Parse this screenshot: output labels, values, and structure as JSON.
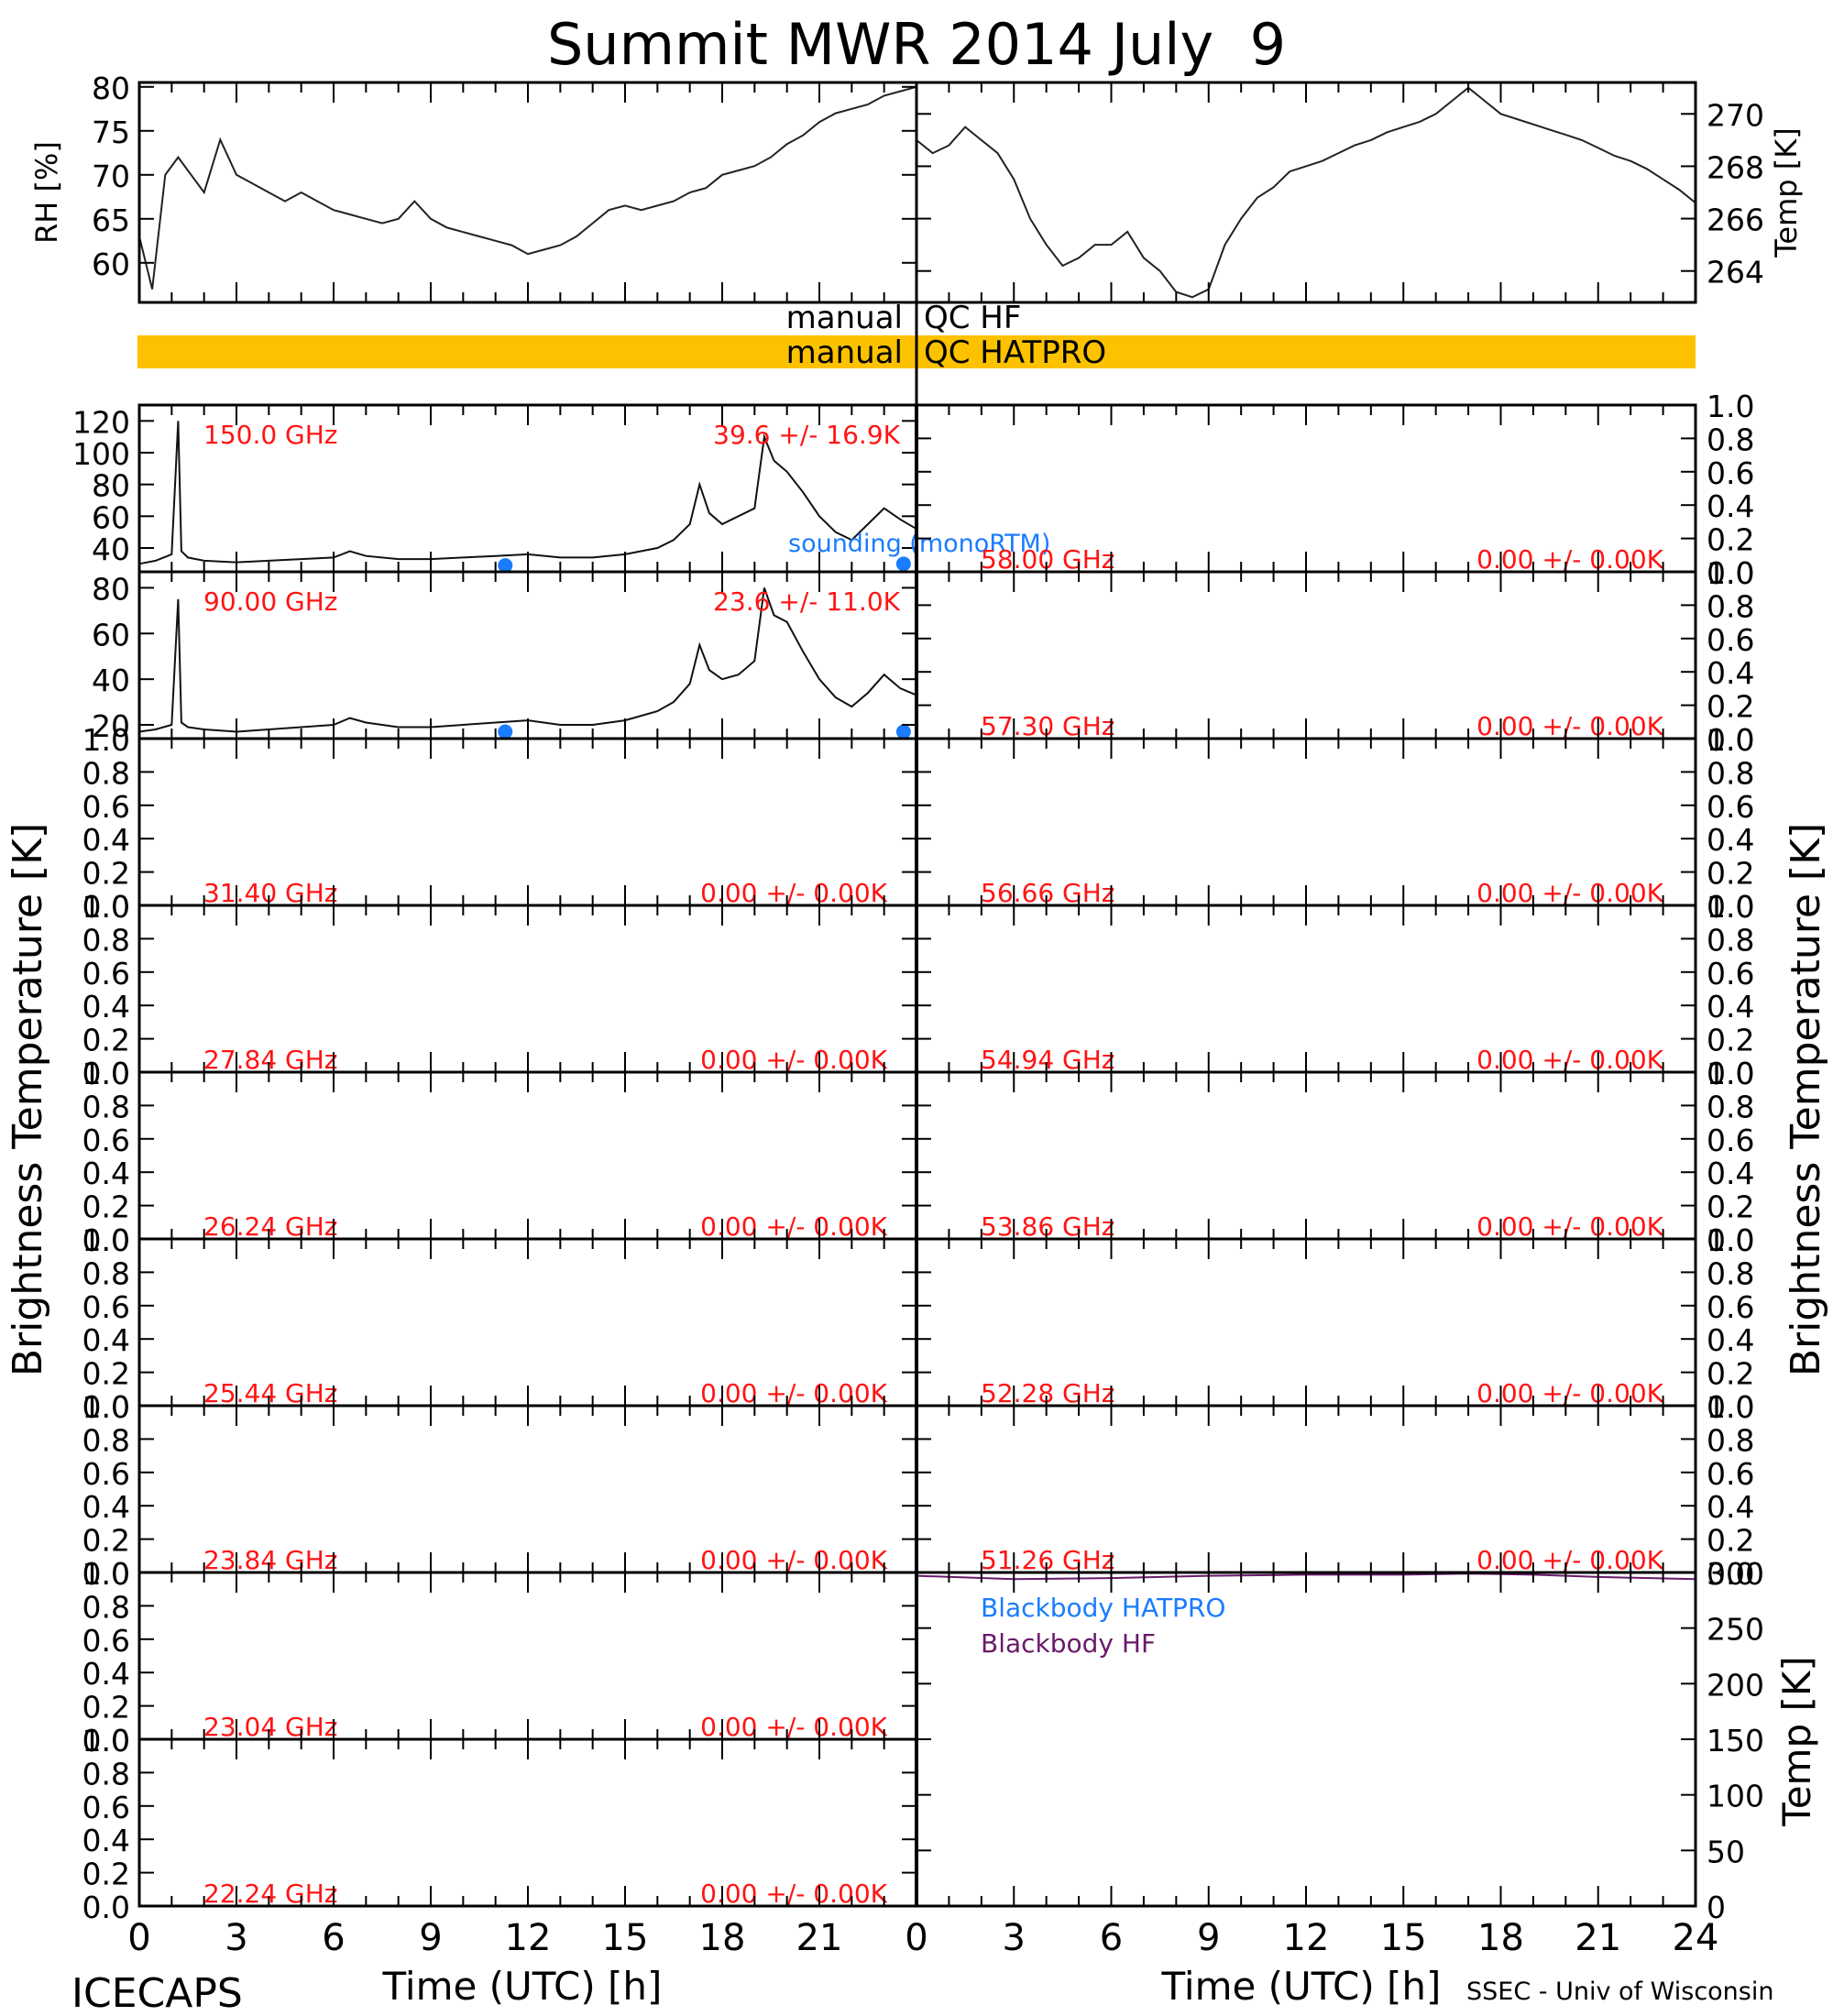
{
  "title": "Summit MWR 2014 July  9",
  "footer": {
    "left": "ICECAPS",
    "right": "SSEC - Univ of Wisconsin"
  },
  "colors": {
    "axis": "#000000",
    "qc_bar": "#fcc200",
    "channel_label": "#ff1414",
    "sounding": "#1a7cff",
    "bb_hatpro": "#1a7cff",
    "bb_hf": "#6a1a6a"
  },
  "chart_data": [
    {
      "id": "rh",
      "type": "line",
      "ylabel": "RH [%]",
      "ylim": [
        55.5,
        80.5
      ],
      "yticks": [
        60,
        65,
        70,
        75,
        80
      ],
      "xlim": [
        0,
        24
      ],
      "x": [
        0,
        0.4,
        0.8,
        1.2,
        1.6,
        2,
        2.5,
        3,
        3.5,
        4,
        4.5,
        5,
        5.5,
        6,
        6.5,
        7,
        7.5,
        8,
        8.5,
        9,
        9.5,
        10,
        10.5,
        11,
        11.5,
        12,
        12.5,
        13,
        13.5,
        14,
        14.5,
        15,
        15.5,
        16,
        16.5,
        17,
        17.5,
        18,
        18.5,
        19,
        19.5,
        20,
        20.5,
        21,
        21.5,
        22,
        22.5,
        23,
        23.5,
        24
      ],
      "values": [
        63,
        57,
        70,
        72,
        70,
        68,
        74,
        70,
        69,
        68,
        67,
        68,
        67,
        66,
        65.5,
        65,
        64.5,
        65,
        67,
        65,
        64,
        63.5,
        63,
        62.5,
        62,
        61,
        61.5,
        62,
        63,
        64.5,
        66,
        66.5,
        66,
        66.5,
        67,
        68,
        68.5,
        70,
        70.5,
        71,
        72,
        73.5,
        74.5,
        76,
        77,
        77.5,
        78,
        79,
        79.5,
        80
      ]
    },
    {
      "id": "temp",
      "type": "line",
      "ylabel": "Temp [K]",
      "ylim": [
        262.8,
        271.2
      ],
      "yticks": [
        264,
        266,
        268,
        270
      ],
      "xlim": [
        0,
        24
      ],
      "x": [
        0,
        0.5,
        1,
        1.5,
        2,
        2.5,
        3,
        3.5,
        4,
        4.5,
        5,
        5.5,
        6,
        6.5,
        7,
        7.5,
        8,
        8.5,
        9,
        9.5,
        10,
        10.5,
        11,
        11.5,
        12,
        12.5,
        13,
        13.5,
        14,
        14.5,
        15,
        15.5,
        16,
        16.5,
        17,
        17.5,
        18,
        18.5,
        19,
        19.5,
        20,
        20.5,
        21,
        21.5,
        22,
        22.5,
        23,
        23.5,
        24
      ],
      "values": [
        269,
        268.5,
        268.8,
        269.5,
        269,
        268.5,
        267.5,
        266,
        265,
        264.2,
        264.5,
        265,
        265,
        265.5,
        264.5,
        264,
        263.2,
        263,
        263.3,
        265,
        266,
        266.8,
        267.2,
        267.8,
        268,
        268.2,
        268.5,
        268.8,
        269,
        269.3,
        269.5,
        269.7,
        270,
        270.5,
        271,
        270.5,
        270,
        269.8,
        269.6,
        269.4,
        269.2,
        269,
        268.7,
        268.4,
        268.2,
        267.9,
        267.5,
        267.1,
        266.6
      ]
    },
    {
      "id": "ch150",
      "type": "line",
      "channel": "150.0 GHz",
      "stats": "39.6 +/-  16.9K",
      "ylim": [
        25,
        130
      ],
      "yticks": [
        40,
        60,
        80,
        100,
        120
      ],
      "xlim": [
        0,
        24
      ],
      "x": [
        0,
        0.5,
        1,
        1.2,
        1.3,
        1.5,
        2,
        3,
        4,
        5,
        6,
        6.5,
        7,
        8,
        9,
        10,
        11,
        12,
        13,
        14,
        15,
        16,
        16.5,
        17,
        17.3,
        17.6,
        18,
        18.5,
        19,
        19.3,
        19.6,
        20,
        20.5,
        21,
        21.5,
        22,
        22.5,
        23,
        23.5,
        24
      ],
      "values": [
        30,
        32,
        36,
        120,
        38,
        34,
        32,
        31,
        32,
        33,
        34,
        38,
        35,
        33,
        33,
        34,
        35,
        36,
        34,
        34,
        36,
        40,
        45,
        55,
        80,
        62,
        55,
        60,
        65,
        110,
        95,
        88,
        75,
        60,
        50,
        45,
        55,
        65,
        58,
        52
      ],
      "sounding_label": "sounding (monoRTM)",
      "sounding_points": {
        "x": [
          11.3,
          23.6
        ],
        "y": [
          29,
          30
        ]
      }
    },
    {
      "id": "ch90",
      "type": "line",
      "channel": "90.00 GHz",
      "stats": "23.6 +/-  11.0K",
      "ylim": [
        14,
        87
      ],
      "yticks": [
        20,
        40,
        60,
        80
      ],
      "xlim": [
        0,
        24
      ],
      "x": [
        0,
        0.5,
        1,
        1.2,
        1.3,
        1.5,
        2,
        3,
        4,
        5,
        6,
        6.5,
        7,
        8,
        9,
        10,
        11,
        12,
        13,
        14,
        15,
        16,
        16.5,
        17,
        17.3,
        17.6,
        18,
        18.5,
        19,
        19.3,
        19.6,
        20,
        20.5,
        21,
        21.5,
        22,
        22.5,
        23,
        23.5,
        24
      ],
      "values": [
        17,
        18,
        20,
        75,
        21,
        19,
        18,
        17,
        18,
        19,
        20,
        23,
        21,
        19,
        19,
        20,
        21,
        22,
        20,
        20,
        22,
        26,
        30,
        38,
        55,
        44,
        40,
        42,
        48,
        80,
        68,
        65,
        52,
        40,
        32,
        28,
        34,
        42,
        36,
        33
      ],
      "sounding_points": {
        "x": [
          11.3,
          23.6
        ],
        "y": [
          17,
          17
        ]
      }
    }
  ],
  "channels_left": [
    {
      "freq": "31.40 GHz",
      "stats": "0.00 +/-  0.00K"
    },
    {
      "freq": "27.84 GHz",
      "stats": "0.00 +/-  0.00K"
    },
    {
      "freq": "26.24 GHz",
      "stats": "0.00 +/-  0.00K"
    },
    {
      "freq": "25.44 GHz",
      "stats": "0.00 +/-  0.00K"
    },
    {
      "freq": "23.84 GHz",
      "stats": "0.00 +/-  0.00K"
    },
    {
      "freq": "23.04 GHz",
      "stats": "0.00 +/-  0.00K"
    },
    {
      "freq": "22.24 GHz",
      "stats": "0.00 +/-  0.00K"
    }
  ],
  "channels_right": [
    {
      "freq": "58.00 GHz",
      "stats": "0.00 +/-  0.00K"
    },
    {
      "freq": "57.30 GHz",
      "stats": "0.00 +/-  0.00K"
    },
    {
      "freq": "56.66 GHz",
      "stats": "0.00 +/-  0.00K"
    },
    {
      "freq": "54.94 GHz",
      "stats": "0.00 +/-  0.00K"
    },
    {
      "freq": "53.86 GHz",
      "stats": "0.00 +/-  0.00K"
    },
    {
      "freq": "52.28 GHz",
      "stats": "0.00 +/-  0.00K"
    },
    {
      "freq": "51.26 GHz",
      "stats": "0.00 +/-  0.00K"
    }
  ],
  "empty_yticks": [
    "0.0",
    "0.2",
    "0.4",
    "0.6",
    "0.8",
    "1.0"
  ],
  "blackbody": {
    "ylabel": "Temp [K]",
    "ylim": [
      0,
      300
    ],
    "yticks": [
      0,
      50,
      100,
      150,
      200,
      250,
      300
    ],
    "legend": [
      "Blackbody HATPRO",
      "Blackbody HF"
    ],
    "hf": {
      "x": [
        0,
        3,
        6,
        9,
        12,
        15,
        17,
        19,
        21,
        24
      ],
      "values": [
        297,
        294,
        295,
        297,
        298,
        298,
        299,
        298,
        296,
        294
      ]
    },
    "hatpro": {
      "x": [
        0,
        24
      ],
      "values": [
        0,
        0
      ]
    }
  },
  "qc": {
    "hf": "manual  QC HF",
    "hatpro": "manual  QC HATPRO"
  },
  "ylabel_tb": "Brightness Temperature [K]",
  "xlabel": "Time (UTC) [h]",
  "xticks": [
    "0",
    "3",
    "6",
    "9",
    "12",
    "15",
    "18",
    "21",
    "24"
  ]
}
